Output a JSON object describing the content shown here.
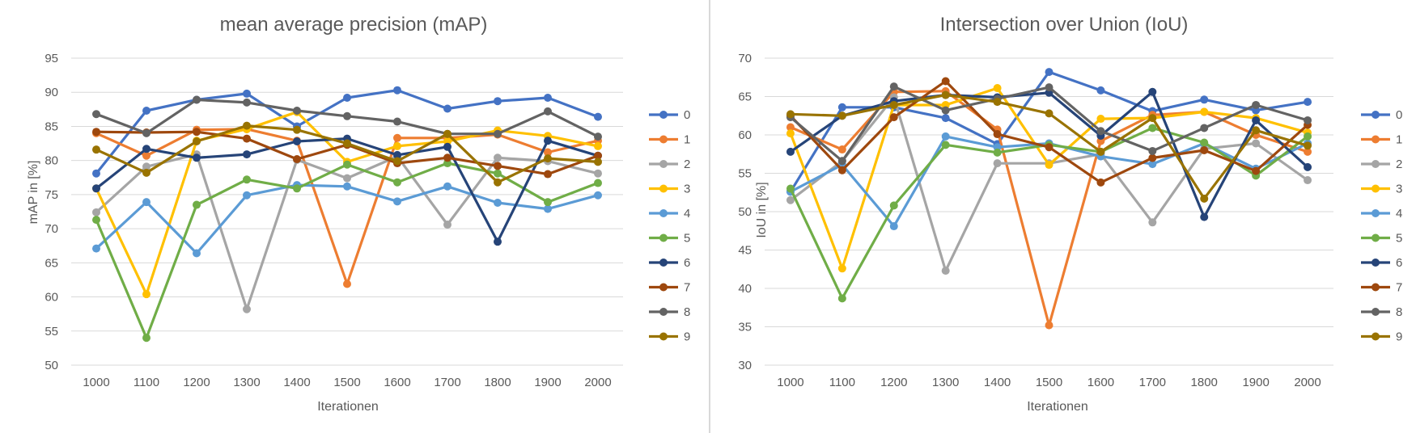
{
  "chart_data": [
    {
      "type": "line",
      "title": "mean average precision (mAP)",
      "xlabel": "Iterationen",
      "ylabel": "mAP in [%]",
      "ylim": [
        50,
        95
      ],
      "ytick_step": 5,
      "yticks": [
        "50",
        "55",
        "60",
        "65",
        "70",
        "75",
        "80",
        "85",
        "90",
        "95"
      ],
      "grid": true,
      "legend": "right",
      "categories": [
        "1000",
        "1100",
        "1200",
        "1300",
        "1400",
        "1500",
        "1600",
        "1700",
        "1800",
        "1900",
        "2000"
      ],
      "series": [
        {
          "name": "0",
          "color": "#4472C4",
          "values": [
            78.1,
            87.3,
            88.9,
            89.8,
            85.0,
            89.2,
            90.3,
            87.6,
            88.7,
            89.2,
            86.4
          ]
        },
        {
          "name": "1",
          "color": "#ED7D31",
          "values": [
            84.0,
            80.7,
            84.5,
            84.6,
            82.9,
            61.9,
            83.3,
            83.3,
            83.8,
            81.2,
            82.9
          ]
        },
        {
          "name": "2",
          "color": "#A5A5A5",
          "values": [
            72.4,
            79.1,
            80.9,
            58.2,
            80.1,
            77.4,
            80.6,
            70.6,
            80.4,
            79.9,
            78.1
          ]
        },
        {
          "name": "3",
          "color": "#FFC000",
          "values": [
            75.9,
            60.4,
            82.9,
            84.6,
            87.1,
            79.8,
            82.1,
            82.8,
            84.4,
            83.6,
            82.1
          ]
        },
        {
          "name": "4",
          "color": "#5B9BD5",
          "values": [
            67.1,
            73.9,
            66.4,
            74.9,
            76.4,
            76.2,
            74.0,
            76.2,
            73.8,
            72.9,
            74.9
          ]
        },
        {
          "name": "5",
          "color": "#70AD47",
          "values": [
            71.3,
            54.0,
            73.5,
            77.2,
            75.9,
            79.4,
            76.8,
            79.6,
            78.1,
            73.9,
            76.7
          ]
        },
        {
          "name": "6",
          "color": "#264478",
          "values": [
            75.9,
            81.7,
            80.4,
            80.9,
            82.8,
            83.2,
            80.8,
            82.0,
            68.1,
            82.9,
            80.7
          ]
        },
        {
          "name": "7",
          "color": "#9E480E",
          "values": [
            84.2,
            84.1,
            84.2,
            83.2,
            80.2,
            82.3,
            79.6,
            80.4,
            79.2,
            78.0,
            80.7
          ]
        },
        {
          "name": "8",
          "color": "#636363",
          "values": [
            86.8,
            84.0,
            88.9,
            88.5,
            87.3,
            86.5,
            85.7,
            83.9,
            83.9,
            87.2,
            83.5
          ]
        },
        {
          "name": "9",
          "color": "#997300",
          "values": [
            81.6,
            78.2,
            82.8,
            85.1,
            84.5,
            82.5,
            79.9,
            83.9,
            76.8,
            80.3,
            79.8
          ]
        }
      ]
    },
    {
      "type": "line",
      "title": "Intersection over Union (IoU)",
      "xlabel": "Iterationen",
      "ylabel": "IoU in [%]",
      "ylim": [
        30,
        70
      ],
      "ytick_step": 5,
      "yticks": [
        "30",
        "35",
        "40",
        "45",
        "50",
        "55",
        "60",
        "65",
        "70"
      ],
      "grid": true,
      "legend": "right",
      "categories": [
        "1000",
        "1100",
        "1200",
        "1300",
        "1400",
        "1500",
        "1600",
        "1700",
        "1800",
        "1900",
        "2000"
      ],
      "series": [
        {
          "name": "0",
          "color": "#4472C4",
          "values": [
            52.6,
            63.6,
            63.6,
            62.2,
            58.8,
            68.2,
            65.8,
            63.1,
            64.6,
            63.2,
            64.3
          ]
        },
        {
          "name": "1",
          "color": "#ED7D31",
          "values": [
            61.0,
            58.1,
            65.6,
            65.7,
            60.7,
            35.2,
            59.2,
            62.6,
            63.0,
            60.0,
            57.8
          ]
        },
        {
          "name": "2",
          "color": "#A5A5A5",
          "values": [
            51.5,
            56.6,
            64.9,
            42.3,
            56.3,
            56.3,
            57.5,
            48.6,
            58.2,
            58.9,
            54.1
          ]
        },
        {
          "name": "3",
          "color": "#FFC000",
          "values": [
            60.2,
            42.6,
            63.9,
            63.9,
            66.1,
            56.1,
            62.1,
            62.2,
            63.0,
            62.2,
            60.3
          ]
        },
        {
          "name": "4",
          "color": "#5B9BD5",
          "values": [
            52.6,
            56.1,
            48.1,
            59.8,
            58.4,
            58.9,
            57.2,
            56.2,
            58.9,
            55.6,
            58.9
          ]
        },
        {
          "name": "5",
          "color": "#70AD47",
          "values": [
            53.0,
            38.7,
            50.8,
            58.7,
            57.7,
            58.7,
            57.8,
            60.9,
            59.0,
            54.7,
            59.8
          ]
        },
        {
          "name": "6",
          "color": "#264478",
          "values": [
            57.8,
            62.5,
            64.4,
            65.2,
            64.9,
            65.5,
            59.9,
            65.6,
            49.3,
            61.9,
            55.8
          ]
        },
        {
          "name": "7",
          "color": "#9E480E",
          "values": [
            62.5,
            55.4,
            62.3,
            67.0,
            60.1,
            58.4,
            53.8,
            57.0,
            58.0,
            55.3,
            61.3
          ]
        },
        {
          "name": "8",
          "color": "#636363",
          "values": [
            62.3,
            56.6,
            66.3,
            63.2,
            64.7,
            66.2,
            60.5,
            57.9,
            60.9,
            63.9,
            61.9
          ]
        },
        {
          "name": "9",
          "color": "#997300",
          "values": [
            62.7,
            62.5,
            63.9,
            65.2,
            64.3,
            62.8,
            57.8,
            62.2,
            51.7,
            60.6,
            58.6
          ]
        }
      ]
    }
  ]
}
